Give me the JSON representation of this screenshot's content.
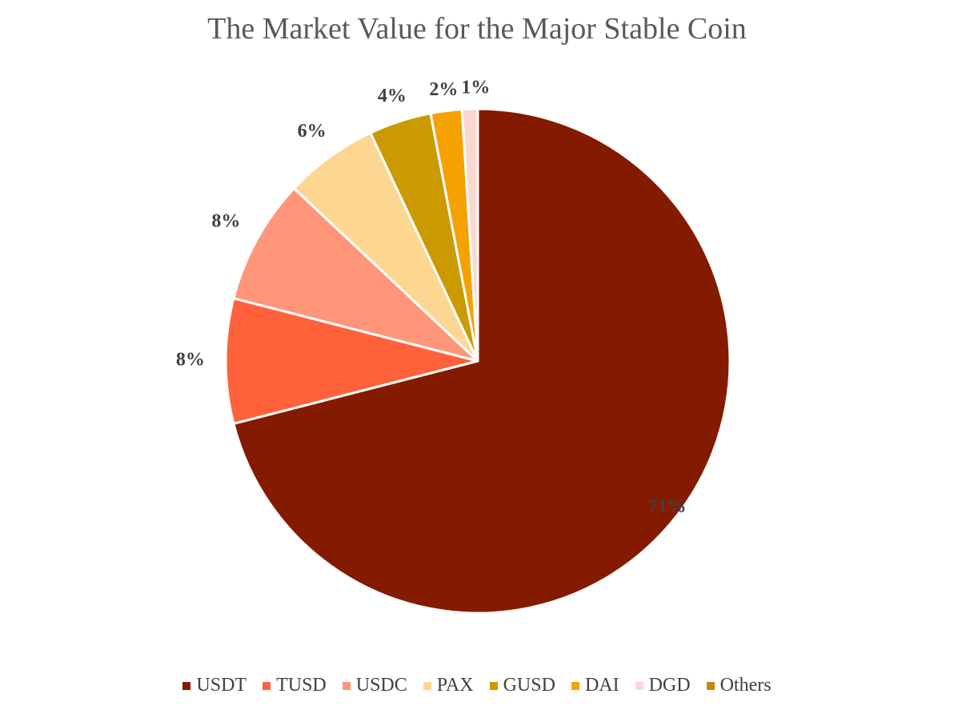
{
  "chart_data": {
    "type": "pie",
    "title": "The Market Value for the Major Stable Coin",
    "categories": [
      "USDT",
      "TUSD",
      "USDC",
      "PAX",
      "GUSD",
      "DAI",
      "DGD",
      "Others"
    ],
    "values": [
      71,
      8,
      8,
      6,
      4,
      2,
      1,
      0
    ],
    "labels": [
      "71%",
      "8%",
      "8%",
      "6%",
      "4%",
      "2%",
      "1%",
      ""
    ],
    "colors": [
      "#841B00",
      "#FF623A",
      "#FF967A",
      "#FDD792",
      "#CA9A00",
      "#F5A102",
      "#F9D8D2",
      "#C08A16"
    ],
    "legend_position": "bottom"
  }
}
